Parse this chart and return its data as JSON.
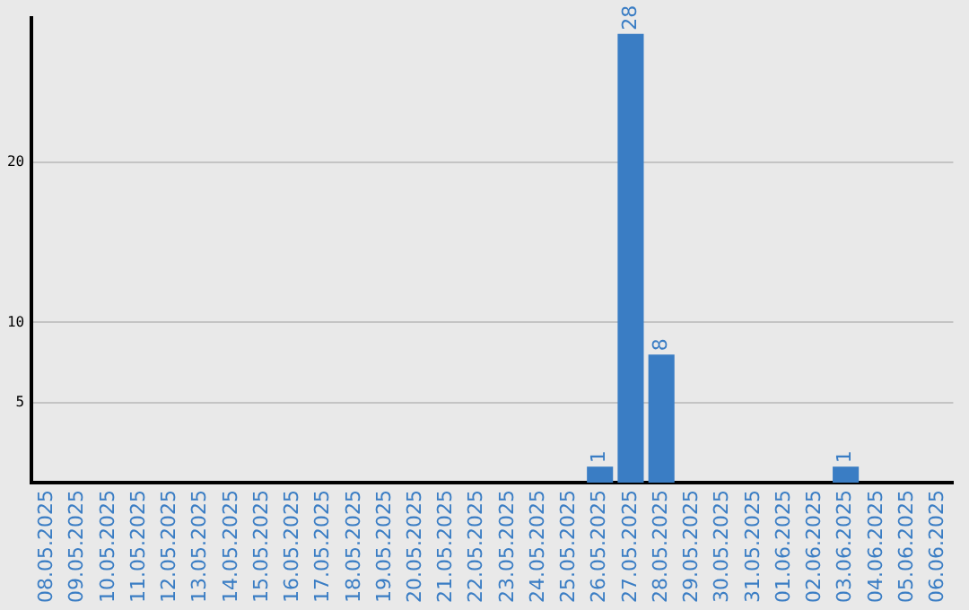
{
  "chart_data": {
    "type": "bar",
    "categories": [
      "08.05.2025",
      "09.05.2025",
      "10.05.2025",
      "11.05.2025",
      "12.05.2025",
      "13.05.2025",
      "14.05.2025",
      "15.05.2025",
      "16.05.2025",
      "17.05.2025",
      "18.05.2025",
      "19.05.2025",
      "20.05.2025",
      "21.05.2025",
      "22.05.2025",
      "23.05.2025",
      "24.05.2025",
      "25.05.2025",
      "26.05.2025",
      "27.05.2025",
      "28.05.2025",
      "29.05.2025",
      "30.05.2025",
      "31.05.2025",
      "01.06.2025",
      "02.06.2025",
      "03.06.2025",
      "04.06.2025",
      "05.06.2025",
      "06.06.2025"
    ],
    "values": [
      0,
      0,
      0,
      0,
      0,
      0,
      0,
      0,
      0,
      0,
      0,
      0,
      0,
      0,
      0,
      0,
      0,
      0,
      1,
      28,
      8,
      0,
      0,
      0,
      0,
      0,
      1,
      0,
      0,
      0
    ],
    "value_labels": [
      null,
      null,
      null,
      null,
      null,
      null,
      null,
      null,
      null,
      null,
      null,
      null,
      null,
      null,
      null,
      null,
      null,
      null,
      "1",
      "28",
      "8",
      null,
      null,
      null,
      null,
      null,
      "1",
      null,
      null,
      null
    ],
    "color": "#3a7dc4",
    "ylim": [
      0,
      29
    ],
    "yticks": [
      5,
      10,
      20
    ],
    "grid": "y",
    "legend": false
  }
}
